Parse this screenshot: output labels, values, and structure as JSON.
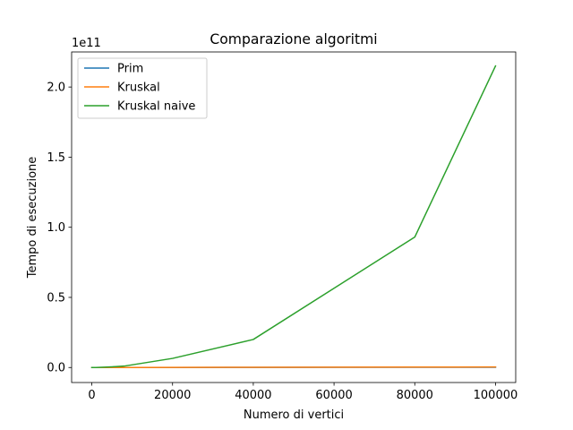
{
  "chart_data": {
    "type": "line",
    "title": "Comparazione algoritmi",
    "xlabel": "Numero di vertici",
    "ylabel": "Tempo di esecuzione",
    "y_offset_label": "1e11",
    "xlim": [
      -5000,
      105000
    ],
    "ylim": [
      -0.107,
      2.25
    ],
    "xticks": [
      0,
      20000,
      40000,
      60000,
      80000,
      100000
    ],
    "xtick_labels": [
      "0",
      "20000",
      "40000",
      "60000",
      "80000",
      "100000"
    ],
    "yticks": [
      0.0,
      0.5,
      1.0,
      1.5,
      2.0
    ],
    "ytick_labels": [
      "0.0",
      "0.5",
      "1.0",
      "1.5",
      "2.0"
    ],
    "grid": false,
    "legend_position": "top-left",
    "x": [
      10,
      100,
      1000,
      5000,
      8000,
      20000,
      40000,
      80000,
      100000
    ],
    "series": [
      {
        "name": "Prim",
        "color": "#1f77b4",
        "values": [
          0,
          0,
          0,
          0.0001,
          0.0002,
          0.0004,
          0.0008,
          0.0015,
          0.002
        ]
      },
      {
        "name": "Kruskal",
        "color": "#ff7f0e",
        "values": [
          0,
          0,
          0,
          0.0002,
          0.0004,
          0.0008,
          0.0016,
          0.003,
          0.004
        ]
      },
      {
        "name": "Kruskal naive",
        "color": "#2ca02c",
        "values": [
          0,
          0,
          0,
          0.005,
          0.01,
          0.065,
          0.2,
          0.93,
          2.15
        ]
      }
    ]
  }
}
